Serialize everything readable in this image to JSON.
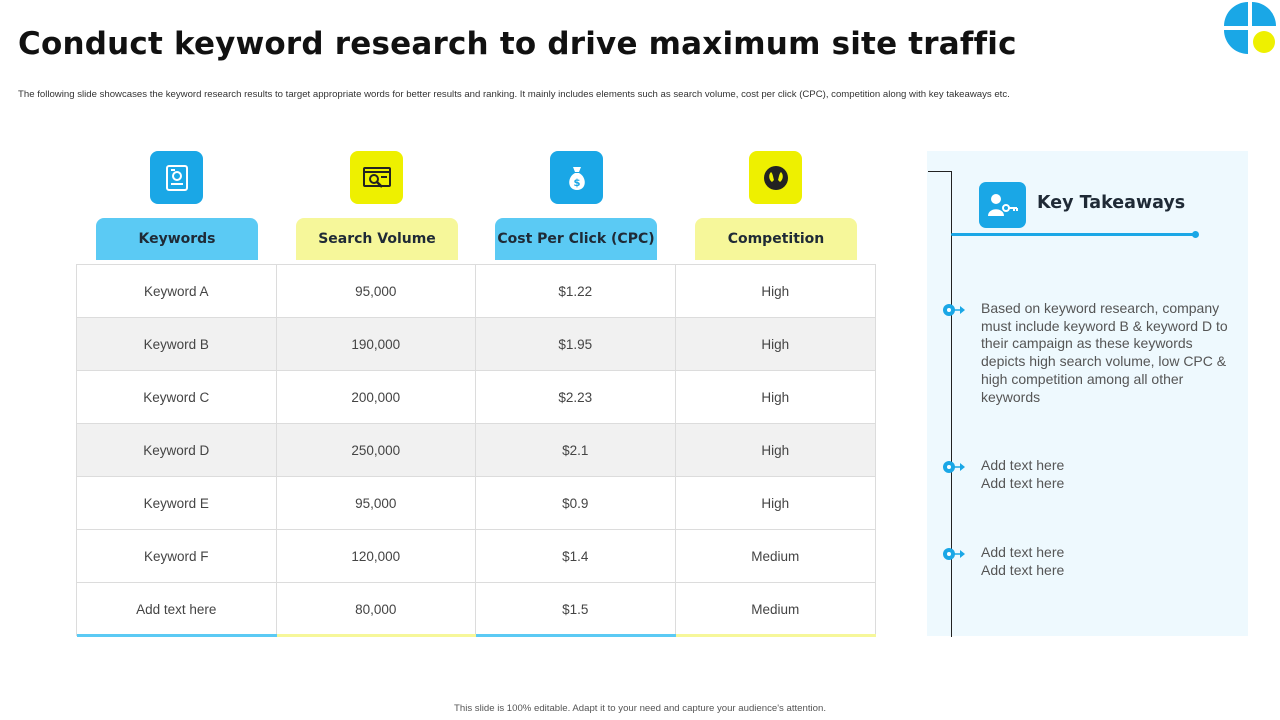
{
  "title": "Conduct keyword research to drive maximum site traffic",
  "subtitle": "The following slide showcases the keyword research results to target appropriate words for better results and ranking. It mainly includes elements such as search volume, cost per click (CPC),  competition along with key takeaways etc.",
  "footer": "This slide is 100% editable. Adapt it to your need and capture your audience's attention.",
  "colors": {
    "blue": "#1aa7e6",
    "light_blue": "#5bcaf4",
    "yellow": "#eef000",
    "light_yellow": "#f6f79a",
    "panel_bg": "#eef9fe"
  },
  "table": {
    "headers": [
      {
        "label": "Keywords",
        "icon": "keyword-document-icon"
      },
      {
        "label": "Search Volume",
        "icon": "search-analysis-icon"
      },
      {
        "label": "Cost Per Click (CPC)",
        "icon": "money-bag-icon"
      },
      {
        "label": "Competition",
        "icon": "competition-icon"
      }
    ],
    "rows": [
      [
        "Keyword A",
        "95,000",
        "$1.22",
        "High"
      ],
      [
        "Keyword B",
        "190,000",
        "$1.95",
        "High"
      ],
      [
        "Keyword C",
        "200,000",
        "$2.23",
        "High"
      ],
      [
        "Keyword D",
        "250,000",
        "$2.1",
        "High"
      ],
      [
        "Keyword E",
        "95,000",
        "$0.9",
        "High"
      ],
      [
        "Keyword F",
        "120,000",
        "$1.4",
        "Medium"
      ],
      [
        "Add text here",
        "80,000",
        "$1.5",
        "Medium"
      ]
    ]
  },
  "takeaways": {
    "title": "Key Takeaways",
    "icon": "person-key-icon",
    "items": [
      "Based on keyword research, company must include keyword B & keyword D to their campaign as these keywords depicts high search volume, low CPC & high competition among all other keywords",
      "Add text here\nAdd text here",
      "Add text here\nAdd text here"
    ]
  }
}
